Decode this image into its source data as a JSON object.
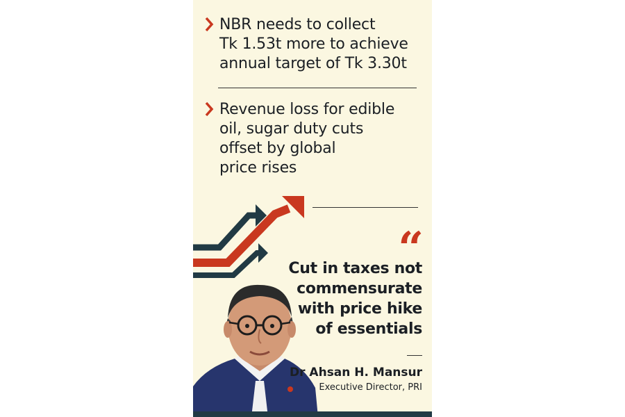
{
  "bullets": [
    {
      "text": "NBR needs to collect\nTk 1.53t more to achieve\nannual target of Tk 3.30t"
    },
    {
      "text": "Revenue loss for edible\noil, sugar duty cuts\noffset by global\nprice rises"
    }
  ],
  "quote": {
    "mark": "“",
    "text": "Cut in taxes not\ncommensurate\nwith price hike\nof essentials",
    "author": "Dr Ahsan H. Mansur",
    "role": "Executive Director, PRI"
  },
  "colors": {
    "background": "#fbf7e1",
    "accent_red": "#c9381f",
    "arrow_teal": "#213a44",
    "text": "#1b1f24"
  },
  "icons": [
    "chevron-right-icon",
    "trend-arrows-icon",
    "quotation-mark-icon"
  ]
}
